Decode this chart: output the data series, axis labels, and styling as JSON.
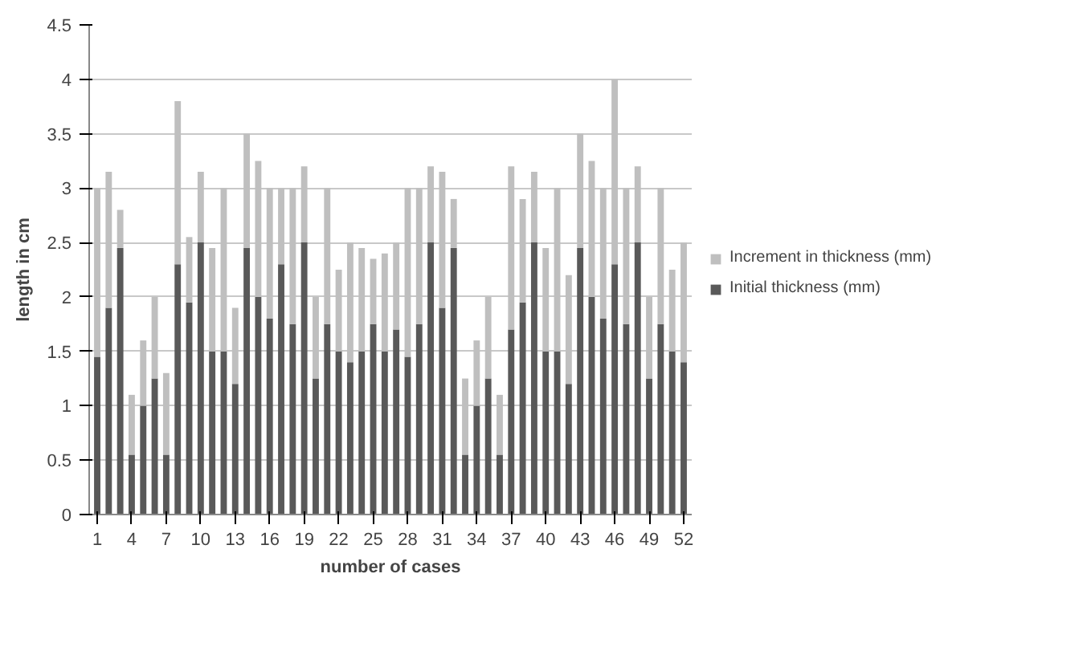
{
  "chart_data": {
    "type": "bar",
    "stacked": true,
    "xlabel": "number of cases",
    "ylabel": "length in cm",
    "categories": [
      "1",
      null,
      null,
      "4",
      null,
      null,
      "7",
      null,
      null,
      "10",
      null,
      null,
      "13",
      null,
      null,
      "16",
      null,
      null,
      "19",
      null,
      null,
      "22",
      null,
      null,
      "25",
      null,
      null,
      "28",
      null,
      null,
      "31",
      null,
      null,
      "34",
      null,
      null,
      "37",
      null,
      null,
      "40",
      null,
      null,
      "43",
      null,
      null,
      "46",
      null,
      null,
      "49",
      null,
      null,
      "52"
    ],
    "series": [
      {
        "name": "Initial thickness (mm)",
        "color": "#595959",
        "values": [
          1.45,
          1.9,
          2.45,
          0.55,
          1.0,
          1.25,
          0.55,
          2.3,
          1.95,
          2.5,
          1.5,
          1.5,
          1.2,
          2.45,
          2.0,
          1.8,
          2.3,
          1.75,
          2.5,
          1.25,
          1.75,
          1.5,
          1.4,
          1.5,
          1.75,
          1.5,
          1.7,
          1.45,
          1.75,
          2.5,
          1.9,
          2.45,
          0.55,
          1.0,
          1.25,
          0.55,
          1.7,
          1.95,
          2.5,
          1.5,
          1.5,
          1.2,
          2.45,
          2.0,
          1.8,
          2.3,
          1.75,
          2.5,
          1.25,
          1.75,
          1.5,
          1.4
        ]
      },
      {
        "name": "Increment in thickness (mm)",
        "color": "#bfbfbf",
        "values": [
          1.55,
          1.25,
          0.35,
          0.55,
          0.6,
          0.75,
          0.75,
          1.5,
          0.6,
          0.65,
          0.95,
          1.5,
          0.7,
          1.05,
          1.25,
          1.2,
          0.7,
          1.25,
          0.7,
          0.75,
          1.25,
          0.75,
          1.1,
          0.95,
          0.6,
          0.9,
          0.8,
          1.55,
          1.25,
          0.7,
          1.25,
          0.45,
          0.7,
          0.6,
          0.75,
          0.55,
          1.5,
          0.95,
          0.65,
          0.95,
          1.5,
          1.0,
          1.05,
          1.25,
          1.2,
          1.7,
          1.25,
          0.7,
          0.75,
          1.25,
          0.75,
          1.1
        ]
      }
    ],
    "ylim": [
      0,
      4.5
    ],
    "yticks": [
      0,
      0.5,
      1,
      1.5,
      2,
      2.5,
      3,
      3.5,
      4,
      4.5
    ],
    "grid": "y",
    "legend": "right"
  }
}
